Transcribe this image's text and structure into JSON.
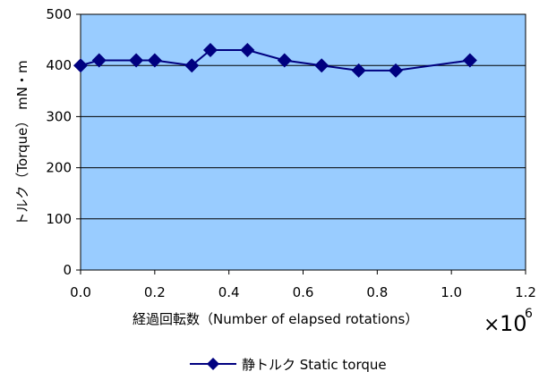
{
  "chart_data": {
    "type": "line",
    "title": "",
    "xlabel": "経過回転数（Number of elapsed rotations）",
    "x_multiplier": {
      "times": "×",
      "base": "10",
      "exponent": "6"
    },
    "ylabel": "トルク（Torque） mN・m",
    "xlim": [
      0,
      1.2
    ],
    "ylim": [
      0,
      500
    ],
    "x_ticks": [
      "0.0",
      "0.2",
      "0.4",
      "0.6",
      "0.8",
      "1.0",
      "1.2"
    ],
    "y_ticks": [
      "0",
      "100",
      "200",
      "300",
      "400",
      "500"
    ],
    "grid": {
      "horizontal": true,
      "vertical": false
    },
    "legend_position": "bottom",
    "colors": {
      "plot_background": "#99ccff",
      "series": "#000080",
      "gridline": "#000000"
    },
    "series": [
      {
        "name": "静トルク Static torque",
        "marker": "diamond",
        "points": [
          {
            "x": 0.0,
            "y": 400
          },
          {
            "x": 0.05,
            "y": 410
          },
          {
            "x": 0.15,
            "y": 410
          },
          {
            "x": 0.2,
            "y": 410
          },
          {
            "x": 0.3,
            "y": 400
          },
          {
            "x": 0.35,
            "y": 430
          },
          {
            "x": 0.45,
            "y": 430
          },
          {
            "x": 0.55,
            "y": 410
          },
          {
            "x": 0.65,
            "y": 400
          },
          {
            "x": 0.75,
            "y": 390
          },
          {
            "x": 0.85,
            "y": 390
          },
          {
            "x": 1.05,
            "y": 410
          }
        ]
      }
    ]
  }
}
